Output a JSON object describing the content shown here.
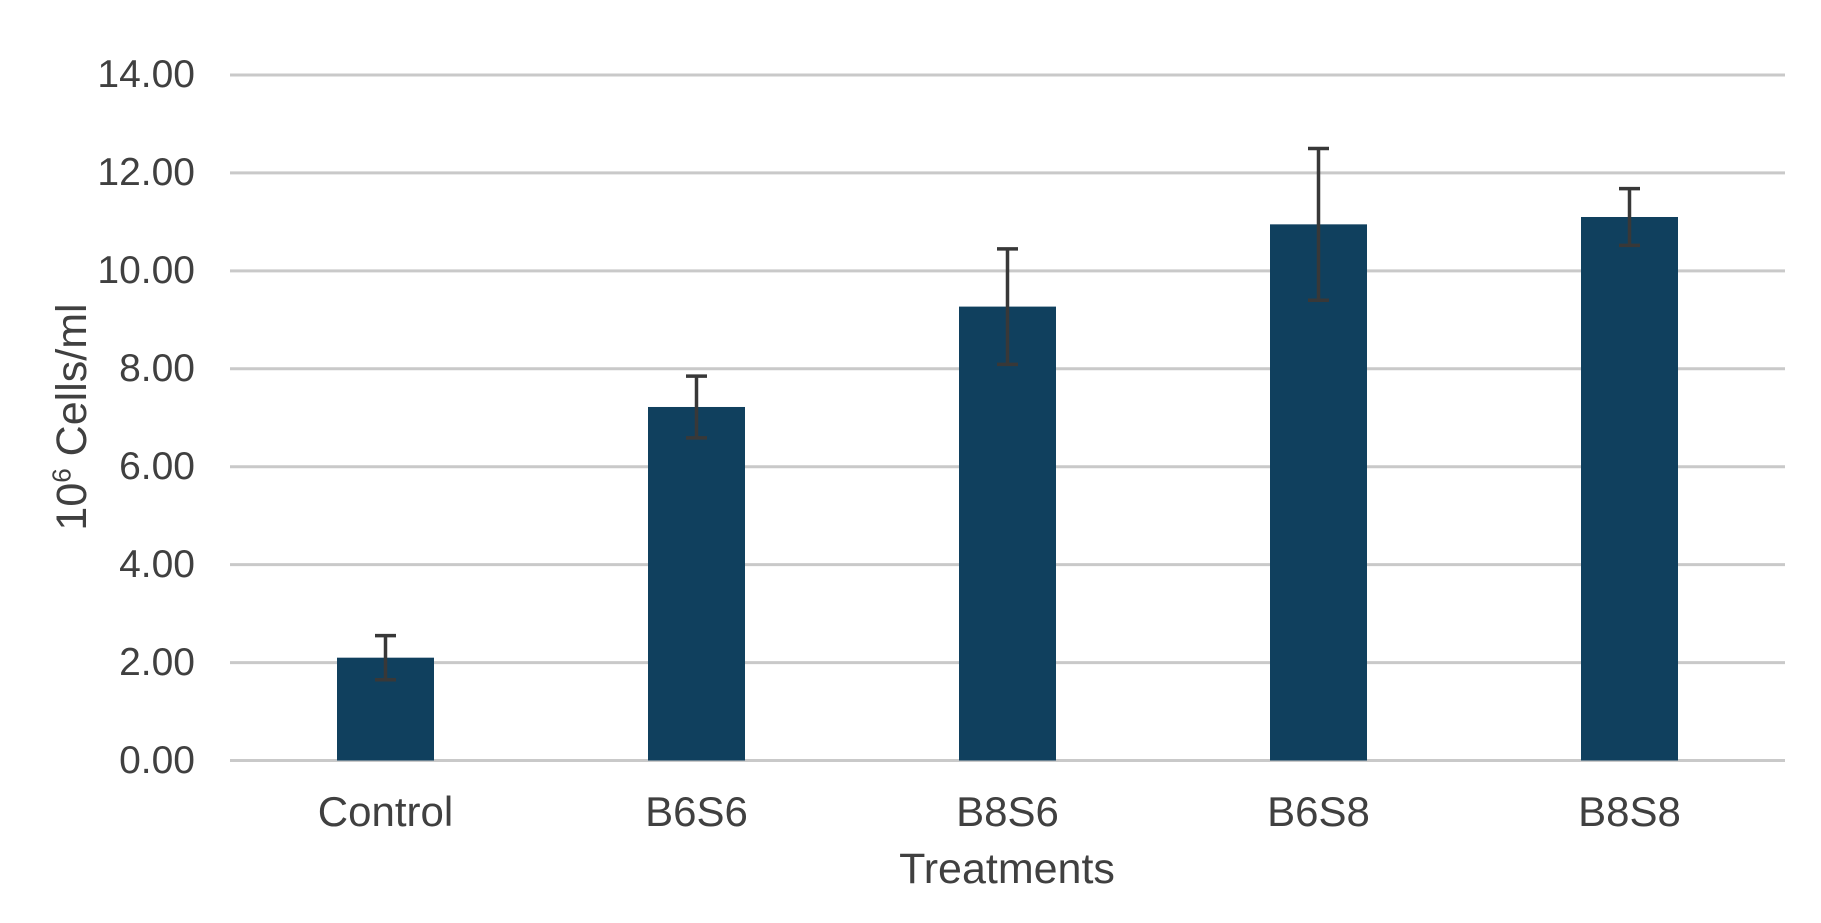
{
  "chart_data": {
    "type": "bar",
    "title": "",
    "categories": [
      "Control",
      "B6S6",
      "B8S6",
      "B6S8",
      "B8S8"
    ],
    "values": [
      2.1,
      7.22,
      9.27,
      10.95,
      11.1
    ],
    "errors": [
      0.45,
      0.63,
      1.18,
      1.55,
      0.58
    ],
    "xlabel": "Treatments",
    "ylabel": "10^6 Cells/ml",
    "ylabel_parts": {
      "base": "10",
      "sup": "6",
      "rest": " Cells/ml"
    },
    "ylim": [
      0,
      14
    ],
    "y_ticks": [
      0,
      2,
      4,
      6,
      8,
      10,
      12,
      14
    ],
    "y_tick_decimals": 2,
    "grid": true,
    "legend": "none",
    "colors": {
      "bar": "#10405E",
      "error_bar": "#383838",
      "gridline": "#C9C9C9",
      "tick_text": "#404040",
      "axis_title_text": "#404040",
      "background": "#FFFFFF"
    }
  }
}
